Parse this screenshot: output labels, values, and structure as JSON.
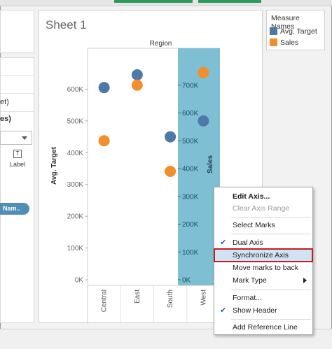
{
  "left_panel": {
    "fragment_et": "et)",
    "fragment_es": "es)",
    "label_button": {
      "icon": "T",
      "text": "Label"
    },
    "pill_text": "Nam.."
  },
  "sheet": {
    "title": "Sheet 1"
  },
  "legend": {
    "title": "Measure Names",
    "items": [
      {
        "label": "Avg. Target",
        "color": "#4e79a7"
      },
      {
        "label": "Sales",
        "color": "#f28e2b"
      }
    ]
  },
  "chart_data": {
    "type": "scatter",
    "column_header": "Region",
    "categories": [
      "Central",
      "East",
      "South",
      "West"
    ],
    "left_axis": {
      "label": "Avg. Target",
      "range": [
        0,
        700000
      ],
      "ticks": [
        0,
        100000,
        200000,
        300000,
        400000,
        500000,
        600000
      ],
      "tick_labels": [
        "0K",
        "100K",
        "200K",
        "300K",
        "400K",
        "500K",
        "600K"
      ]
    },
    "right_axis": {
      "label": "Sales",
      "range": [
        0,
        800000
      ],
      "ticks": [
        0,
        100000,
        200000,
        300000,
        400000,
        500000,
        600000,
        700000
      ],
      "tick_labels": [
        "0K",
        "100K",
        "200K",
        "300K",
        "400K",
        "500K",
        "600K",
        "700K"
      ]
    },
    "series": [
      {
        "name": "Avg. Target",
        "axis": "left",
        "color": "#4e79a7",
        "values": [
          605000,
          645000,
          450000,
          500000
        ]
      },
      {
        "name": "Sales",
        "axis": "right",
        "color": "#f28e2b",
        "values": [
          500000,
          700000,
          390000,
          745000
        ]
      }
    ],
    "highlight_color": "#7fbfd3"
  },
  "context_menu": {
    "items": [
      {
        "label": "Edit Axis...",
        "bold": true
      },
      {
        "label": "Clear Axis Range",
        "disabled": true
      },
      {
        "label": "Select Marks"
      },
      {
        "label": "Dual Axis",
        "checked": true
      },
      {
        "label": "Synchronize Axis",
        "highlighted": true
      },
      {
        "label": "Move marks to back"
      },
      {
        "label": "Mark Type",
        "submenu": true
      },
      {
        "label": "Format..."
      },
      {
        "label": "Show Header",
        "checked": true
      },
      {
        "label": "Add Reference Line"
      }
    ]
  }
}
